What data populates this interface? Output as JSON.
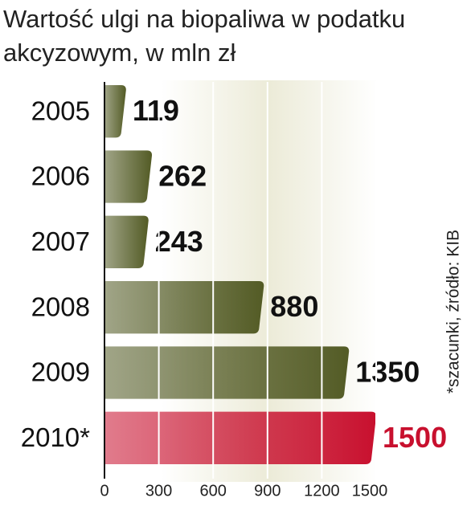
{
  "chart_data": {
    "type": "barh",
    "title_lines": [
      "Wartość ulgi na biopaliwa w podatku",
      "akcyzowym, w mln zł"
    ],
    "note": "*szacunki, źródło: KIB",
    "categories": [
      "2005",
      "2006",
      "2007",
      "2008",
      "2009",
      "2010*"
    ],
    "values": [
      119,
      262,
      243,
      880,
      1350,
      1500
    ],
    "colors": [
      "#535b25",
      "#535b25",
      "#535b25",
      "#535b25",
      "#535b25",
      "#c8102e"
    ],
    "label_colors": [
      "#111111",
      "#111111",
      "#111111",
      "#111111",
      "#111111",
      "#c8102e"
    ],
    "xlim": [
      0,
      1500
    ],
    "xticks": [
      0,
      300,
      600,
      900,
      1200,
      1500
    ],
    "grid": true
  }
}
